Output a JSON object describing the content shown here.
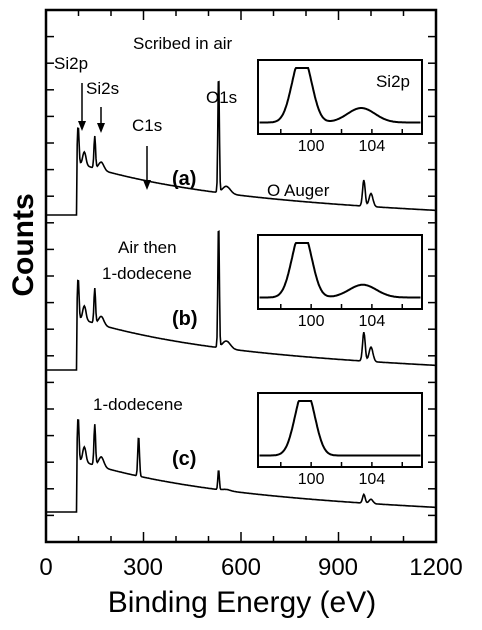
{
  "chart_data": {
    "type": "line",
    "xlabel": "Binding Energy (eV)",
    "ylabel": "Counts",
    "xlim": [
      0,
      1200
    ],
    "xticks": [
      "0",
      "300",
      "600",
      "900",
      "1200"
    ],
    "colors": {
      "line": "#000000",
      "background": "#ffffff"
    },
    "annotations": {
      "si2p": "Si2p",
      "si2s": "Si2s",
      "c1s": "C1s",
      "o1s": "O1s",
      "o_auger": "O Auger",
      "scribed": "Scribed in air",
      "air_then": "Air then",
      "dodecene_b": "1-dodecene",
      "dodecene_c": "1-dodecene"
    },
    "panels": [
      {
        "label": "(a)",
        "baseline": 0.18,
        "peaks": [
          {
            "x": 99,
            "h": 0.13
          },
          {
            "x": 150,
            "h": 0.11
          },
          {
            "x": 285,
            "h": 0.0
          },
          {
            "x": 531,
            "h": 0.42
          },
          {
            "x": 978,
            "h": 0.09
          }
        ]
      },
      {
        "label": "(b)",
        "baseline": 0.18,
        "peaks": [
          {
            "x": 99,
            "h": 0.14
          },
          {
            "x": 150,
            "h": 0.12
          },
          {
            "x": 285,
            "h": 0.0
          },
          {
            "x": 531,
            "h": 0.44
          },
          {
            "x": 978,
            "h": 0.1
          }
        ]
      },
      {
        "label": "(c)",
        "baseline": 0.18,
        "peaks": [
          {
            "x": 99,
            "h": 0.15
          },
          {
            "x": 150,
            "h": 0.14
          },
          {
            "x": 285,
            "h": 0.14
          },
          {
            "x": 531,
            "h": 0.07
          },
          {
            "x": 978,
            "h": 0.03
          }
        ]
      }
    ],
    "insets": [
      {
        "label": "Si2p",
        "xticks": [
          "100",
          "104"
        ],
        "peak_main": 99.2,
        "peak_oxide": 103.3,
        "oxide_h": 0.25
      },
      {
        "label": "",
        "xticks": [
          "100",
          "104"
        ],
        "peak_main": 99.2,
        "peak_oxide": 103.4,
        "oxide_h": 0.22
      },
      {
        "label": "",
        "xticks": [
          "100",
          "104"
        ],
        "peak_main": 99.4,
        "peak_oxide": 103.0,
        "oxide_h": 0.0
      }
    ]
  }
}
